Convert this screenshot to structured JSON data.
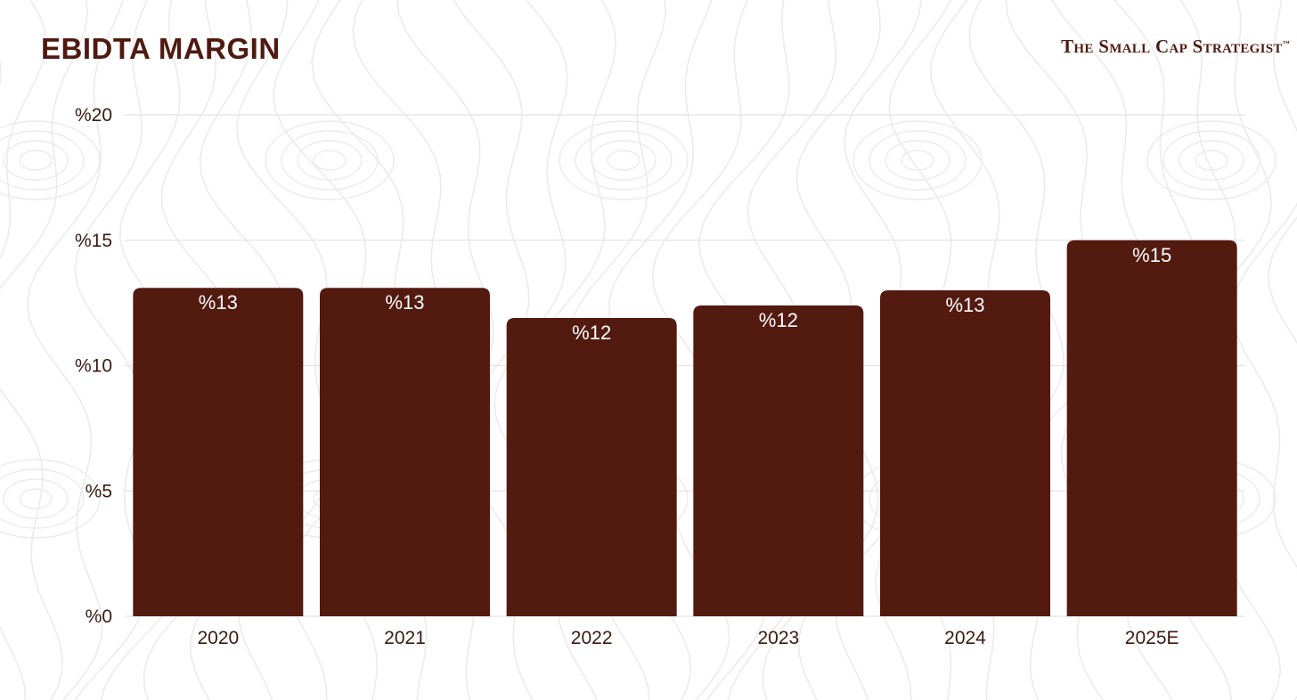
{
  "header": {
    "title": "EBIDTA MARGIN",
    "brand": "The Small Cap Strategist",
    "brand_mark": "™"
  },
  "colors": {
    "bar": "#531a10",
    "text": "#4f1a10",
    "grid": "#e4e4e4",
    "background_pattern": "#ebebeb"
  },
  "chart_data": {
    "type": "bar",
    "title": "EBIDTA MARGIN",
    "categories": [
      "2020",
      "2021",
      "2022",
      "2023",
      "2024",
      "2025E"
    ],
    "values": [
      13.1,
      13.1,
      11.9,
      12.4,
      13.0,
      15.0
    ],
    "data_labels": [
      "%13",
      "%13",
      "%12",
      "%12",
      "%13",
      "%15"
    ],
    "yticks": [
      0,
      5,
      10,
      15,
      20
    ],
    "ytick_labels": [
      "%0",
      "%5",
      "%10",
      "%15",
      "%20"
    ],
    "ylim": [
      0,
      20
    ],
    "xlabel": "",
    "ylabel": "",
    "grid": true,
    "legend": "none"
  }
}
